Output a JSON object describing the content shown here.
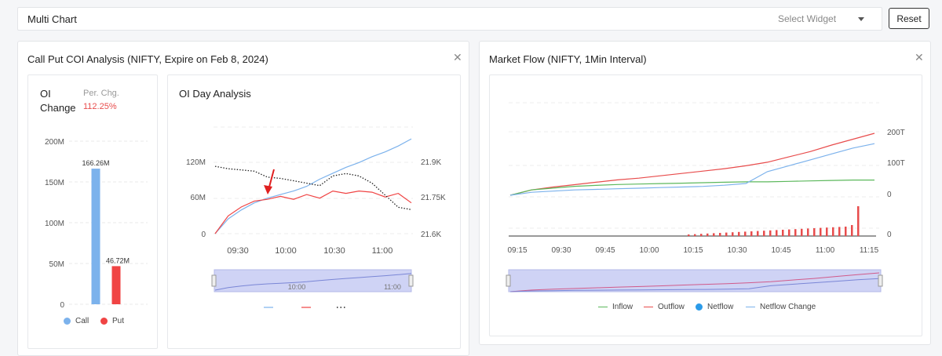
{
  "header": {
    "title": "Multi Chart",
    "select_placeholder": "Select Widget",
    "reset_label": "Reset"
  },
  "left_panel": {
    "title": "Call Put COI Analysis (NIFTY, Expire on Feb 8, 2024)",
    "close_icon": "close-icon",
    "oi_card": {
      "oi_label_1": "OI",
      "oi_label_2": "Change",
      "per_chg_label": "Per. Chg.",
      "per_chg_value": "112.25%",
      "per_chg_color": "#e84c4c"
    },
    "day_card": {
      "title": "OI Day Analysis"
    }
  },
  "right_panel": {
    "title": "Market Flow (NIFTY, 1Min Interval)",
    "close_icon": "close-icon"
  },
  "chart_data": [
    {
      "type": "bar",
      "categories": [
        "Call",
        "Put"
      ],
      "values": [
        166.26,
        46.72
      ],
      "data_labels": [
        "166.26M",
        "46.72M"
      ],
      "y_ticks": [
        "200M",
        "150M",
        "100M",
        "50M",
        "0"
      ],
      "ylim": [
        0,
        200
      ],
      "colors": [
        "#7cb2ec",
        "#f04444"
      ],
      "legend": [
        "Call",
        "Put"
      ],
      "legend_position": "bottom"
    },
    {
      "type": "line",
      "x_ticks": [
        "09:30",
        "10:00",
        "10:30",
        "11:00"
      ],
      "y_left_ticks": [
        "120M",
        "60M",
        "0"
      ],
      "y_right_ticks": [
        "21.9K",
        "21.75K",
        "21.6K"
      ],
      "navigator_ticks": [
        "10:00",
        "11:00"
      ],
      "series_colors": [
        "#7cb2ec",
        "#f04444",
        "#222222"
      ],
      "call_oi_M": [
        0,
        25,
        40,
        52,
        60,
        66,
        72,
        80,
        92,
        102,
        112,
        120,
        130,
        138,
        148,
        160
      ],
      "put_oi_M": [
        0,
        30,
        45,
        55,
        58,
        63,
        58,
        66,
        60,
        72,
        68,
        72,
        70,
        62,
        68,
        52
      ],
      "price": [
        21880,
        21870,
        21865,
        21860,
        21835,
        21830,
        21820,
        21810,
        21800,
        21840,
        21850,
        21840,
        21810,
        21760,
        21710,
        21700
      ]
    },
    {
      "type": "line",
      "x_ticks": [
        "09:15",
        "09:30",
        "09:45",
        "10:00",
        "10:15",
        "10:30",
        "10:45",
        "11:00",
        "11:15"
      ],
      "y_right_ticks": [
        "200T",
        "100T",
        "0",
        "0"
      ],
      "legend": [
        "Inflow",
        "Outflow",
        "Netflow",
        "Netflow Change"
      ],
      "legend_position": "bottom",
      "series_colors": [
        "#5cb85c",
        "#e84c4c",
        "#2b9be9",
        "#7cb2ec"
      ],
      "outflow_T": [
        0,
        18,
        28,
        36,
        44,
        52,
        58,
        66,
        74,
        82,
        90,
        100,
        112,
        130,
        148,
        170,
        190,
        210
      ],
      "inflow_T": [
        0,
        12,
        16,
        20,
        22,
        24,
        25,
        26,
        27,
        28,
        29,
        30,
        30,
        31,
        32,
        33,
        34,
        34
      ],
      "netflow_change_T": [
        0,
        10,
        14,
        18,
        20,
        22,
        24,
        26,
        28,
        30,
        34,
        40,
        80,
        100,
        120,
        140,
        160,
        175
      ]
    }
  ]
}
